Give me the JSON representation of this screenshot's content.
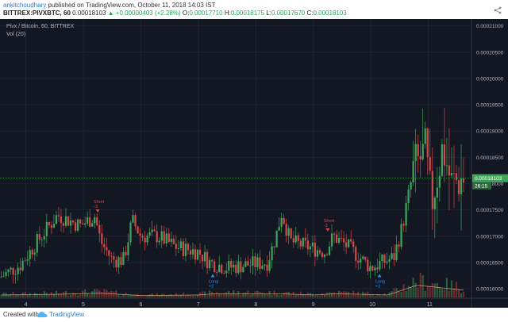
{
  "header": {
    "author": "ankitchoudhary",
    "published_text": "published on TradingView.com, October 11, 2018 14:03 IST",
    "symbol": "BITTREX:PIVXBTC, 60",
    "last_price": "0.00018103",
    "change": "▲ +0.00000403 (+2.28%)",
    "open_label": "O:",
    "open": "0.00017710",
    "high_label": "H:",
    "high": "0.00018175",
    "low_label": "L:",
    "low": "0.00017670",
    "close_label": "C:",
    "close": "0.00018103"
  },
  "legend": {
    "title": "Pivx / Bitcoin, 60, BITTREX",
    "indicator": "Vol (20)"
  },
  "footer": {
    "created_with": "Created with",
    "brand": "TradingView"
  },
  "colors": {
    "background": "#131722",
    "grid": "#1f2a3d",
    "up": "#3fa55a",
    "down": "#d2494a",
    "vol_up": "#2b5a3a",
    "vol_down": "#6b2a2e",
    "vol_ma": "#c6926a",
    "price_line": "#3fa55a",
    "long_signal": "#2196f3",
    "short_signal": "#d2494a"
  },
  "chart_data": {
    "type": "candlestick",
    "x_ticks": [
      "4",
      "5",
      "6",
      "7",
      "8",
      "9",
      "10",
      "11"
    ],
    "y_ticks": [
      "0.00016000",
      "0.00016500",
      "0.00017000",
      "0.00017500",
      "0.00018000",
      "0.00018500",
      "0.00019000",
      "0.00019500",
      "0.00020000",
      "0.00020500",
      "0.00021000"
    ],
    "ylim": [
      0.0001582,
      0.000211
    ],
    "xlim": [
      3.55,
      11.75
    ],
    "current_price_label": "0.00018103",
    "countdown_label": "26:15",
    "current_price": 0.00018103,
    "ohlc_keypoints": [
      [
        3.55,
        0.0001622
      ],
      [
        3.9,
        0.0001645
      ],
      [
        4.2,
        0.000169
      ],
      [
        4.55,
        0.000174
      ],
      [
        4.95,
        0.000172
      ],
      [
        5.2,
        0.0001738
      ],
      [
        5.3,
        0.000169
      ],
      [
        5.5,
        0.0001655
      ],
      [
        5.7,
        0.0001655
      ],
      [
        5.85,
        0.000173
      ],
      [
        6.0,
        0.00017
      ],
      [
        6.3,
        0.00017
      ],
      [
        6.6,
        0.000168
      ],
      [
        7.0,
        0.000167
      ],
      [
        7.2,
        0.000165
      ],
      [
        7.5,
        0.000164
      ],
      [
        7.8,
        0.0001645
      ],
      [
        8.2,
        0.000165
      ],
      [
        8.35,
        0.00017
      ],
      [
        8.45,
        0.0001745
      ],
      [
        8.6,
        0.000169
      ],
      [
        8.9,
        0.000168
      ],
      [
        9.2,
        0.000167
      ],
      [
        9.35,
        0.00017
      ],
      [
        9.6,
        0.000168
      ],
      [
        9.8,
        0.000166
      ],
      [
        10.0,
        0.000164
      ],
      [
        10.2,
        0.000165
      ],
      [
        10.4,
        0.000166
      ],
      [
        10.55,
        0.000172
      ],
      [
        10.75,
        0.000183
      ],
      [
        10.95,
        0.000186
      ],
      [
        11.05,
        0.000176
      ],
      [
        11.25,
        0.000187
      ],
      [
        11.4,
        0.00018
      ],
      [
        11.6,
        0.000181
      ]
    ],
    "volume_keypoints": [
      [
        3.55,
        0.2
      ],
      [
        4.5,
        0.25
      ],
      [
        5.3,
        0.35
      ],
      [
        6.0,
        0.15
      ],
      [
        7.0,
        0.2
      ],
      [
        7.3,
        0.3
      ],
      [
        8.4,
        0.3
      ],
      [
        9.0,
        0.2
      ],
      [
        9.4,
        0.3
      ],
      [
        10.3,
        0.2
      ],
      [
        10.8,
        1.0
      ],
      [
        11.2,
        0.8
      ],
      [
        11.6,
        0.6
      ]
    ],
    "signals": [
      {
        "label": "Short\n-3",
        "x": 5.25,
        "price": 0.0001748,
        "side": "short"
      },
      {
        "label": "Long\n+2",
        "x": 7.25,
        "price": 0.0001625,
        "side": "long"
      },
      {
        "label": "Short\n-2",
        "x": 9.25,
        "price": 0.0001712,
        "side": "short"
      },
      {
        "label": "Long\n+2",
        "x": 10.15,
        "price": 0.0001625,
        "side": "long"
      }
    ]
  }
}
